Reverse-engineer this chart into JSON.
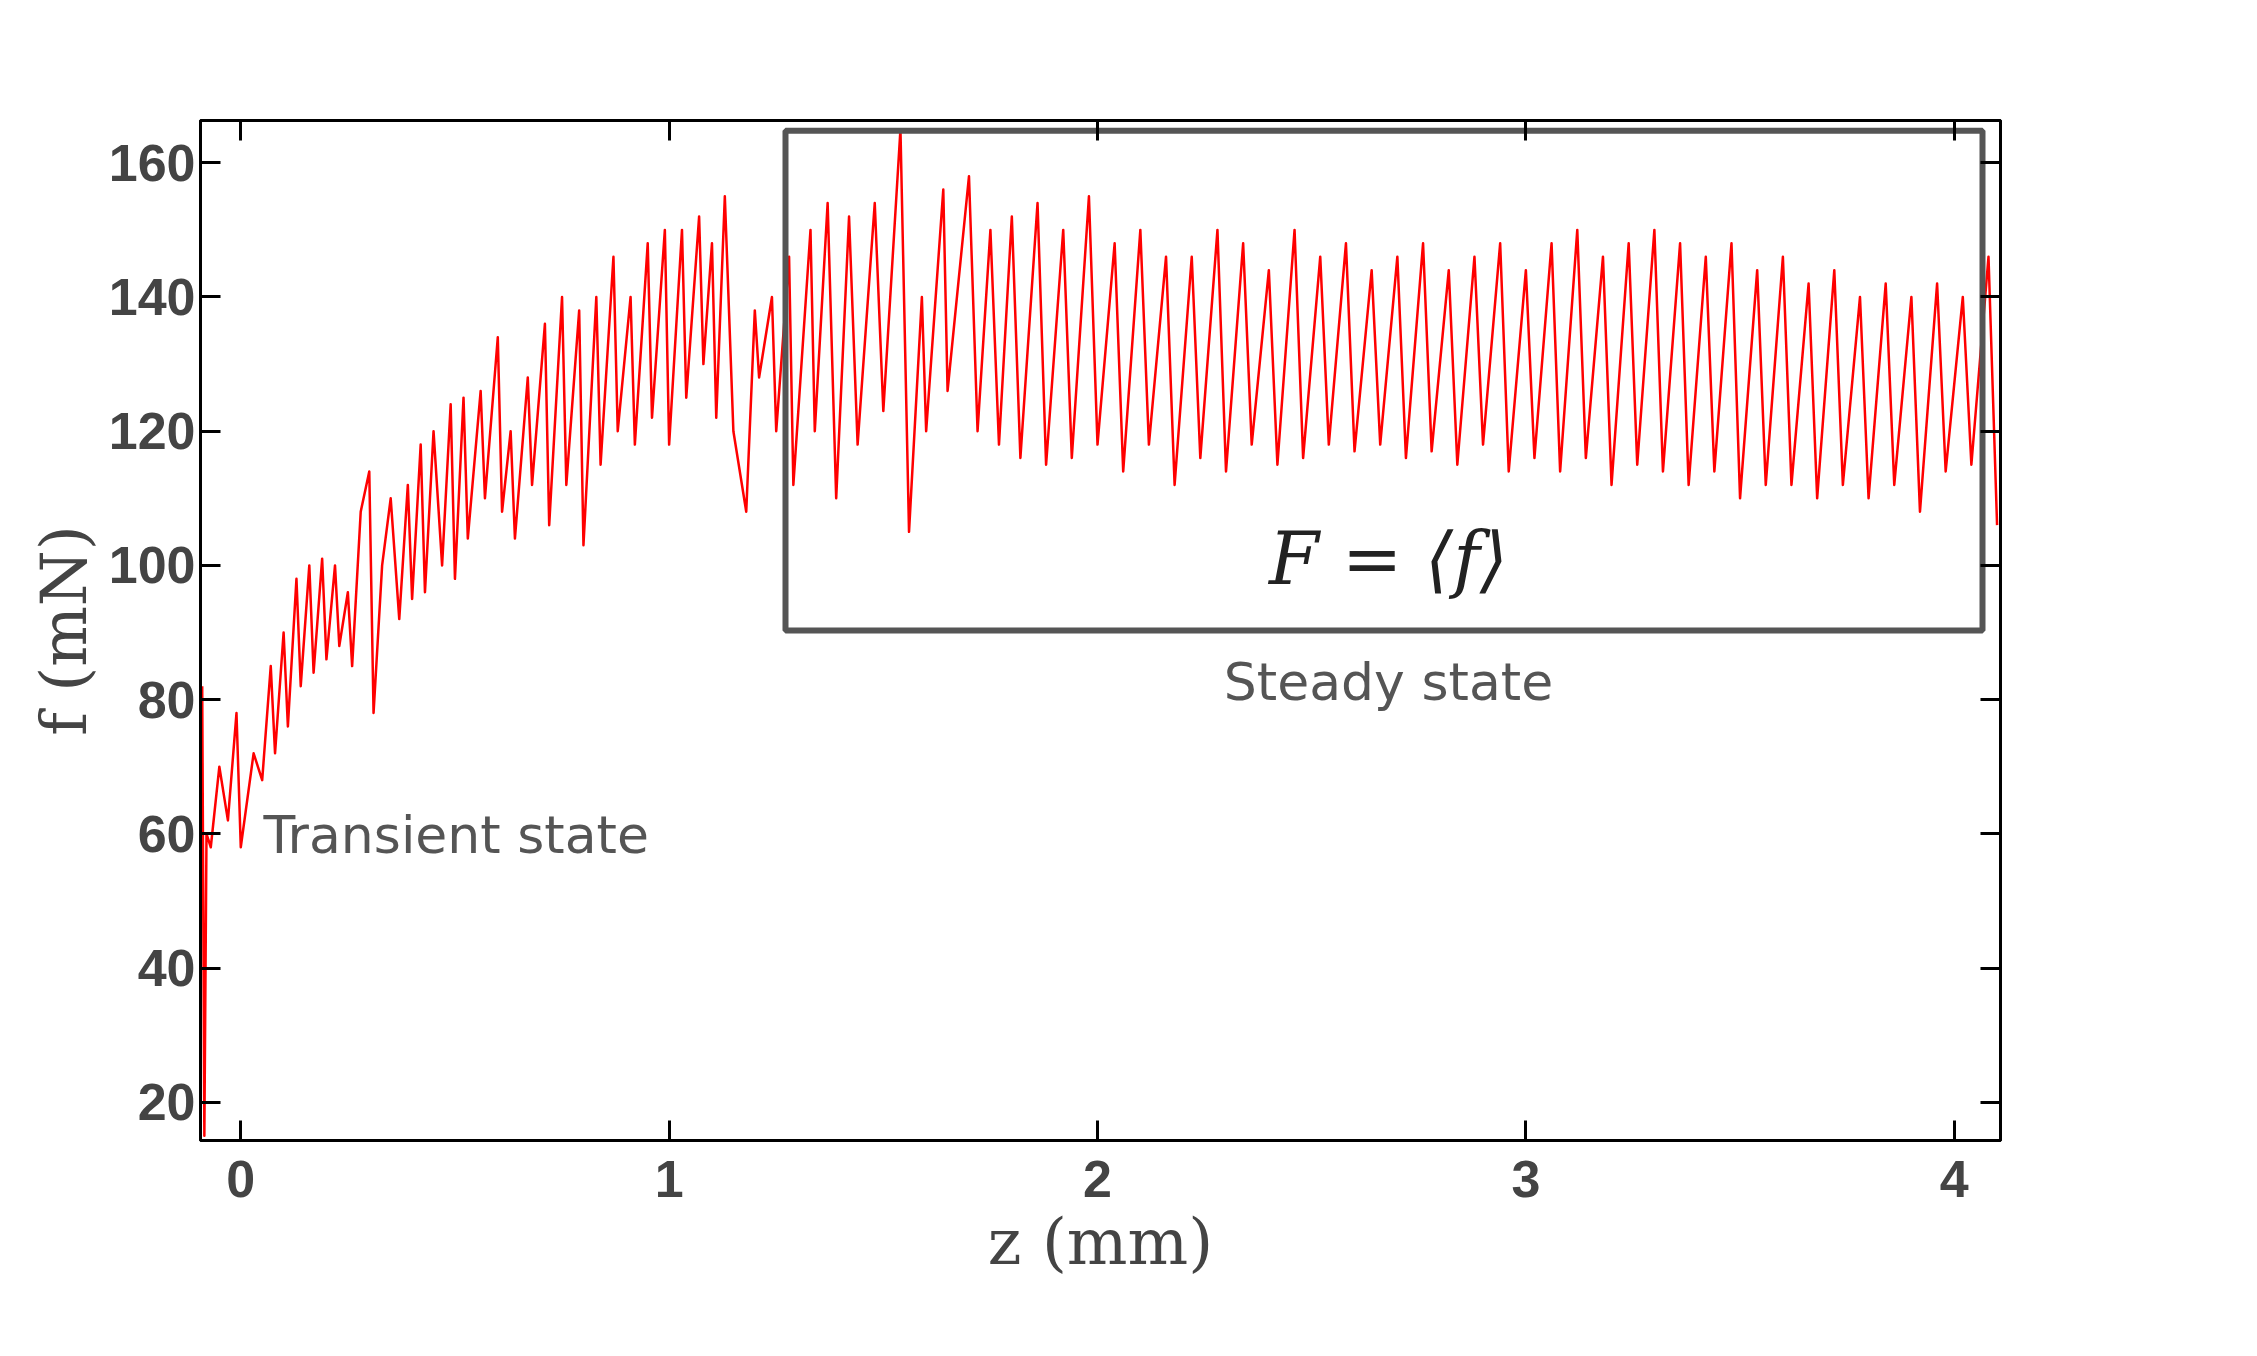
{
  "chart_data": {
    "type": "line",
    "xlabel": "z (mm)",
    "ylabel": "f (mN)",
    "xlim": [
      -0.094,
      4.108
    ],
    "ylim": [
      14.3,
      166.3
    ],
    "xticks": [
      0,
      1,
      2,
      3,
      4
    ],
    "yticks": [
      20,
      40,
      60,
      80,
      100,
      120,
      140,
      160
    ],
    "grid": false,
    "marker": "none",
    "line_style": "solid",
    "series": [
      {
        "color": "#ff0000",
        "x": [
          -0.09,
          -0.085,
          -0.08,
          -0.07,
          -0.05,
          -0.03,
          -0.01,
          0.0,
          0.03,
          0.05,
          0.07,
          0.08,
          0.1,
          0.11,
          0.13,
          0.14,
          0.16,
          0.17,
          0.19,
          0.2,
          0.22,
          0.23,
          0.25,
          0.26,
          0.28,
          0.3,
          0.31,
          0.33,
          0.35,
          0.37,
          0.39,
          0.4,
          0.42,
          0.43,
          0.45,
          0.47,
          0.49,
          0.5,
          0.52,
          0.53,
          0.56,
          0.57,
          0.6,
          0.61,
          0.63,
          0.64,
          0.67,
          0.68,
          0.71,
          0.72,
          0.75,
          0.76,
          0.79,
          0.8,
          0.83,
          0.84,
          0.87,
          0.88,
          0.91,
          0.92,
          0.95,
          0.96,
          0.99,
          1.0,
          1.03,
          1.04,
          1.07,
          1.08,
          1.1,
          1.11,
          1.13,
          1.15,
          1.18,
          1.2,
          1.21,
          1.24,
          1.25,
          1.28,
          1.29,
          1.33,
          1.34,
          1.37,
          1.39,
          1.42,
          1.44,
          1.48,
          1.5,
          1.54,
          1.56,
          1.59,
          1.6,
          1.64,
          1.65,
          1.7,
          1.72,
          1.75,
          1.77,
          1.8,
          1.82,
          1.86,
          1.88,
          1.92,
          1.94,
          1.98,
          2.0,
          2.04,
          2.06,
          2.1,
          2.12,
          2.16,
          2.18,
          2.22,
          2.24,
          2.28,
          2.3,
          2.34,
          2.36,
          2.4,
          2.42,
          2.46,
          2.48,
          2.52,
          2.54,
          2.58,
          2.6,
          2.64,
          2.66,
          2.7,
          2.72,
          2.76,
          2.78,
          2.82,
          2.84,
          2.88,
          2.9,
          2.94,
          2.96,
          3.0,
          3.02,
          3.06,
          3.08,
          3.12,
          3.14,
          3.18,
          3.2,
          3.24,
          3.26,
          3.3,
          3.32,
          3.36,
          3.38,
          3.42,
          3.44,
          3.48,
          3.5,
          3.54,
          3.56,
          3.6,
          3.62,
          3.66,
          3.68,
          3.72,
          3.74,
          3.78,
          3.8,
          3.84,
          3.86,
          3.9,
          3.92,
          3.96,
          3.98,
          4.02,
          4.04,
          4.08,
          4.1
        ],
        "values": [
          82,
          15,
          60,
          58,
          70,
          62,
          78,
          58,
          72,
          68,
          85,
          72,
          90,
          76,
          98,
          82,
          100,
          84,
          101,
          86,
          100,
          88,
          96,
          85,
          108,
          114,
          78,
          100,
          110,
          92,
          112,
          95,
          118,
          96,
          120,
          100,
          124,
          98,
          125,
          104,
          126,
          110,
          134,
          108,
          120,
          104,
          128,
          112,
          136,
          106,
          140,
          112,
          138,
          103,
          140,
          115,
          146,
          120,
          140,
          118,
          148,
          122,
          150,
          118,
          150,
          125,
          152,
          130,
          148,
          122,
          155,
          120,
          108,
          138,
          128,
          140,
          120,
          146,
          112,
          150,
          120,
          154,
          110,
          152,
          118,
          154,
          123,
          165,
          105,
          140,
          120,
          156,
          126,
          158,
          120,
          150,
          118,
          152,
          116,
          154,
          115,
          150,
          116,
          155,
          118,
          148,
          114,
          150,
          118,
          146,
          112,
          146,
          116,
          150,
          114,
          148,
          118,
          144,
          115,
          150,
          116,
          146,
          118,
          148,
          117,
          144,
          118,
          146,
          116,
          148,
          117,
          144,
          115,
          146,
          118,
          148,
          114,
          144,
          116,
          148,
          114,
          150,
          116,
          146,
          112,
          148,
          115,
          150,
          114,
          148,
          112,
          146,
          114,
          148,
          110,
          144,
          112,
          146,
          112,
          142,
          110,
          144,
          112,
          140,
          110,
          142,
          112,
          140,
          108,
          142,
          114,
          140,
          115,
          146,
          106
        ]
      }
    ],
    "annotations": [
      "F = ⟨f⟩",
      "Steady state",
      "Transient state"
    ]
  }
}
